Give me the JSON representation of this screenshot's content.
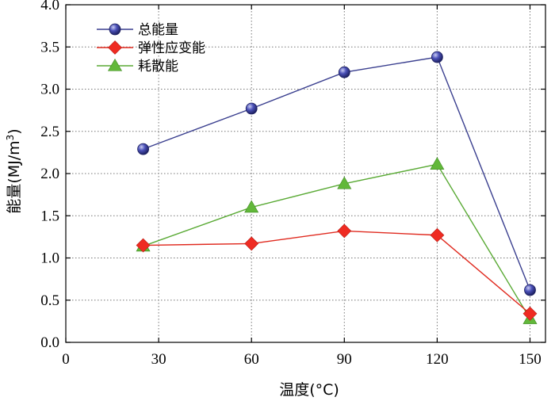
{
  "chart_data": {
    "type": "line",
    "title": "",
    "xlabel": "温度(°C)",
    "ylabel_main": "能量(MJ/m",
    "ylabel_sup": "3",
    "ylabel_close": ")",
    "xlim": [
      0,
      155
    ],
    "ylim": [
      0,
      4.0
    ],
    "xticks": [
      0,
      30,
      60,
      90,
      120,
      150
    ],
    "xtick_labels": [
      "0",
      "30",
      "60",
      "90",
      "120",
      "150"
    ],
    "yticks": [
      0,
      0.5,
      1.0,
      1.5,
      2.0,
      2.5,
      3.0,
      3.5,
      4.0
    ],
    "ytick_labels": [
      "0.0",
      "0.5",
      "1.0",
      "1.5",
      "2.0",
      "2.5",
      "3.0",
      "3.5",
      "4.0"
    ],
    "grid": true,
    "legend_position": "top-left",
    "x": [
      25,
      60,
      90,
      120,
      150
    ],
    "series": [
      {
        "name": "总能量",
        "marker": "circle",
        "line_color": "#3a3f8f",
        "marker_color": "#3b3fa0",
        "values": [
          2.29,
          2.77,
          3.2,
          3.38,
          0.62
        ]
      },
      {
        "name": "弹性应变能",
        "marker": "diamond",
        "line_color": "#e02a1f",
        "marker_color": "#ef2b22",
        "values": [
          1.15,
          1.17,
          1.32,
          1.27,
          0.34
        ]
      },
      {
        "name": "耗散能",
        "marker": "triangle",
        "line_color": "#5aaa35",
        "marker_color": "#62b83a",
        "values": [
          1.14,
          1.6,
          1.88,
          2.11,
          0.28
        ]
      }
    ]
  }
}
